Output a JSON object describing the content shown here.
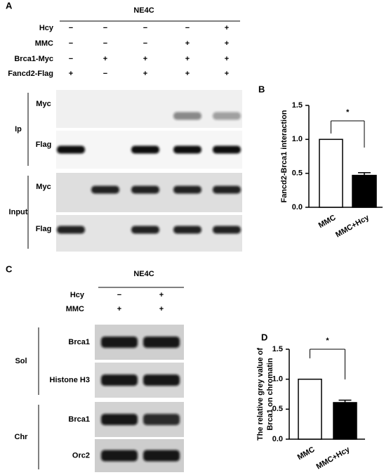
{
  "panel_a": {
    "label": "A",
    "cell_line": "NE4C",
    "conditions": [
      {
        "name": "Hcy",
        "signs": [
          "−",
          "−",
          "−",
          "−",
          "+"
        ]
      },
      {
        "name": "MMC",
        "signs": [
          "−",
          "−",
          "−",
          "+",
          "+"
        ]
      },
      {
        "name": "Brca1-Myc",
        "signs": [
          "−",
          "+",
          "+",
          "+",
          "+"
        ]
      },
      {
        "name": "Fancd2-Flag",
        "signs": [
          "+",
          "−",
          "+",
          "+",
          "+"
        ]
      }
    ],
    "blots": [
      {
        "group": "Ip",
        "rows": [
          "Myc",
          "Flag"
        ]
      },
      {
        "group": "Input",
        "rows": [
          "Myc",
          "Flag"
        ]
      }
    ]
  },
  "panel_c": {
    "label": "C",
    "cell_line": "NE4C",
    "conditions": [
      {
        "name": "Hcy",
        "signs": [
          "−",
          "+"
        ]
      },
      {
        "name": "MMC",
        "signs": [
          "+",
          "+"
        ]
      }
    ],
    "blots": [
      {
        "group": "Sol",
        "rows": [
          "Brca1",
          "Histone H3"
        ]
      },
      {
        "group": "Chr",
        "rows": [
          "Brca1",
          "Orc2"
        ]
      }
    ]
  },
  "chart_data": [
    {
      "panel": "B",
      "type": "bar",
      "ylabel": [
        "Fancd2-Brca1 interaction"
      ],
      "categories": [
        "MMC",
        "MMC+Hcy"
      ],
      "values": [
        1.0,
        0.47
      ],
      "errors": [
        null,
        0.04
      ],
      "colors": [
        "#ffffff",
        "#000000"
      ],
      "ylim": [
        0,
        1.5
      ],
      "yticks": [
        {
          "value": 0,
          "label": "0.0"
        },
        0.5,
        {
          "value": 1,
          "label": "1.0"
        },
        1.5
      ],
      "annotation": "*"
    },
    {
      "panel": "D",
      "type": "bar",
      "ylabel": [
        "The relative grey value of",
        "Brca1 on chromatin"
      ],
      "categories": [
        "MMC",
        "MMC+Hcy"
      ],
      "values": [
        1.0,
        0.61
      ],
      "errors": [
        null,
        0.04
      ],
      "colors": [
        "#ffffff",
        "#000000"
      ],
      "ylim": [
        0,
        1.5
      ],
      "yticks": [
        {
          "value": 0,
          "label": "0.0"
        },
        0.5,
        {
          "value": 1,
          "label": "1.0"
        },
        1.5
      ],
      "annotation": "*"
    }
  ]
}
